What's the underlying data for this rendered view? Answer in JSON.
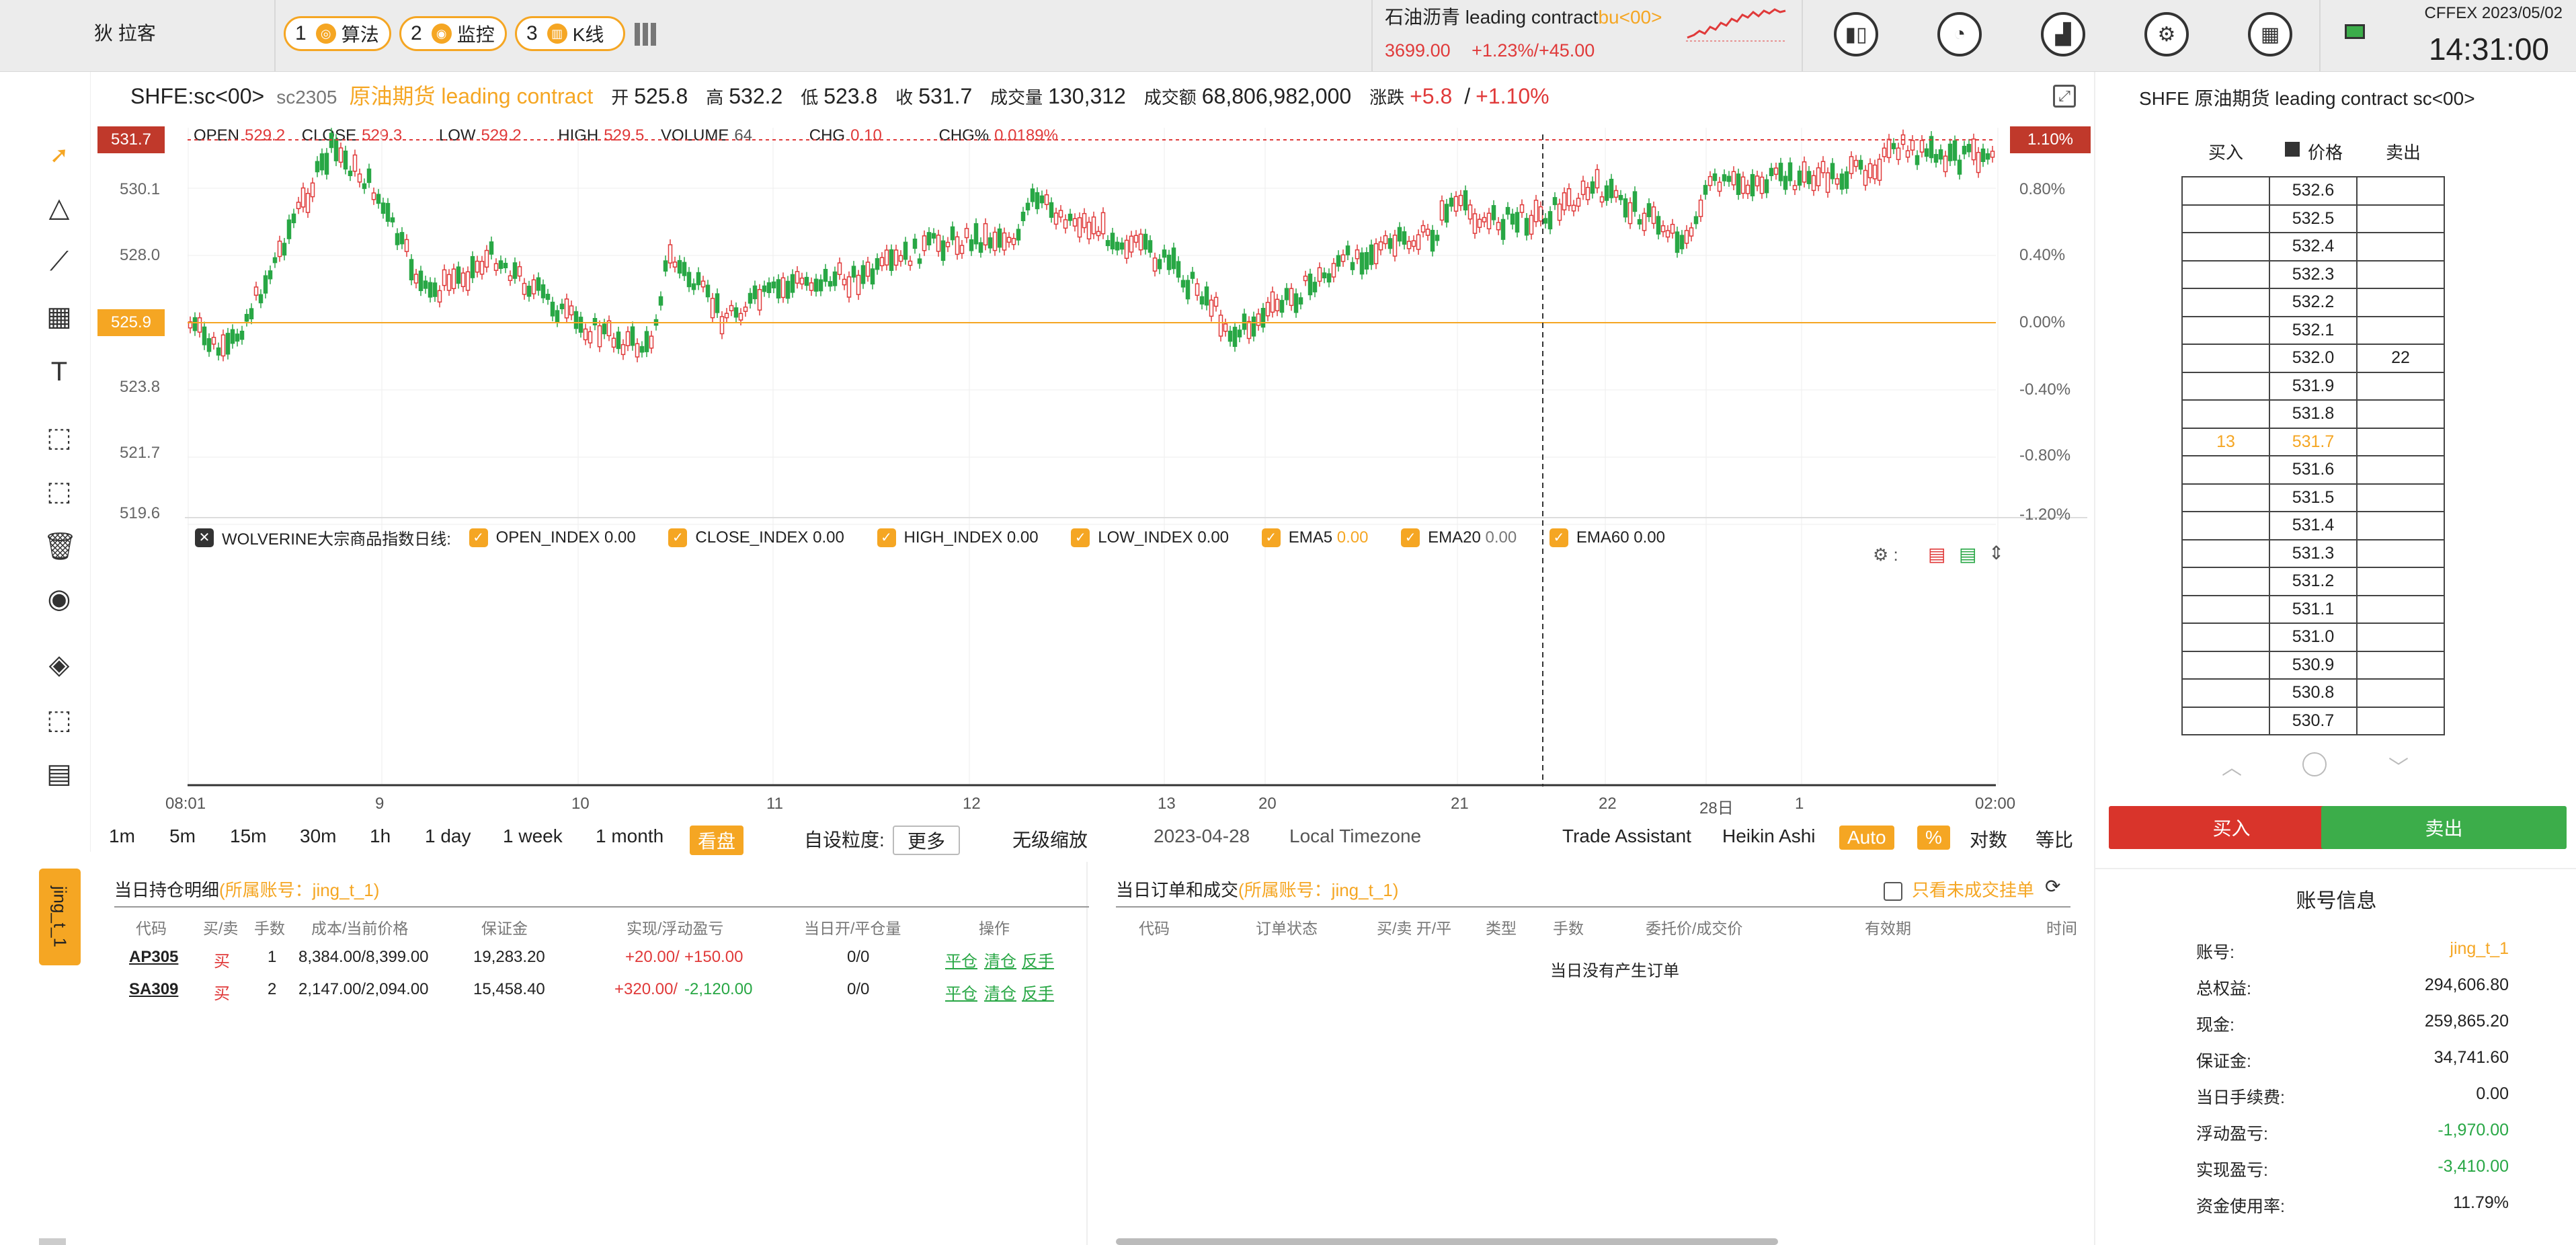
{
  "topbar": {
    "user": "狄 拉客",
    "buttons": [
      {
        "num": "1",
        "icon": "algo-icon",
        "label": "算法"
      },
      {
        "num": "2",
        "icon": "monitor-icon",
        "label": "监控"
      },
      {
        "num": "3",
        "icon": "kline-icon",
        "label": "K线"
      }
    ],
    "ticker_name": "石油沥青 leading contract",
    "ticker_code": "bu<00>",
    "ticker_price": "3699.00",
    "ticker_change": "+1.23%/+45.00",
    "icons": [
      "candlestick-icon",
      "dashboard-icon",
      "bar-chart-icon",
      "gear-icon",
      "calculator-icon",
      "monitor-icon"
    ],
    "exchange_date": "CFFEX 2023/05/02",
    "clock": "14:31:00"
  },
  "chart_header": {
    "symbol": "SHFE:sc<00>",
    "code": "sc2305",
    "name": "原油期货 leading contract",
    "open_label": "开",
    "open": "525.8",
    "high_label": "高",
    "high": "532.2",
    "low_label": "低",
    "low": "523.8",
    "close_label": "收",
    "close": "531.7",
    "vol_label": "成交量",
    "vol": "130,312",
    "amt_label": "成交额",
    "amt": "68,806,982,000",
    "chg_label": "涨跌",
    "chg": "+5.8",
    "chg_pct": "+1.10%"
  },
  "ohlc_legend": {
    "open_label": "OPEN",
    "open": "529.2",
    "close_label": "CLOSE",
    "close": "529.3",
    "low_label": "LOW",
    "low": "529.2",
    "high_label": "HIGH",
    "high": "529.5",
    "volume_label": "VOLUME",
    "volume": "64",
    "chg_label": "CHG",
    "chg": "0.10",
    "chgp_label": "CHG%",
    "chgp": "0.0189%"
  },
  "price_axis": {
    "ticks": [
      "530.1",
      "528.0",
      "525.9",
      "523.8",
      "521.7",
      "519.6"
    ],
    "current_price": "531.7",
    "ref_price": "525.9",
    "pct_ticks": [
      "0.80%",
      "0.40%",
      "0.00%",
      "-0.40%",
      "-0.80%",
      "-1.20%"
    ],
    "current_pct": "1.10%"
  },
  "time_axis": [
    "08:01",
    "9",
    "10",
    "11",
    "12",
    "13",
    "20",
    "21",
    "22",
    "28日",
    "1",
    "02:00"
  ],
  "indicator": {
    "name": "WOLVERINE大宗商品指数日线:",
    "items": [
      {
        "label": "OPEN_INDEX",
        "value": "0.00"
      },
      {
        "label": "CLOSE_INDEX",
        "value": "0.00"
      },
      {
        "label": "HIGH_INDEX",
        "value": "0.00"
      },
      {
        "label": "LOW_INDEX",
        "value": "0.00"
      },
      {
        "label": "EMA5",
        "value": "0.00"
      },
      {
        "label": "EMA20",
        "value": "0.00"
      },
      {
        "label": "EMA60",
        "value": "0.00"
      }
    ]
  },
  "timebar": {
    "intervals": [
      "1m",
      "5m",
      "15m",
      "30m",
      "1h",
      "1 day",
      "1 week",
      "1 month"
    ],
    "pan": "看盘",
    "custom_label": "自设粒度:",
    "custom_value": "更多",
    "no_zoom": "无级缩放",
    "date": "2023-04-28",
    "tz": "Local Timezone",
    "assistant": "Trade Assistant",
    "heikin": "Heikin Ashi",
    "auto": "Auto",
    "pct": "%",
    "log": "对数",
    "equal": "等比"
  },
  "account_tab": "jing_t_1",
  "positions": {
    "title": "当日持仓明细",
    "account": "(所属账号：jing_t_1)",
    "headers": [
      "代码",
      "买/卖",
      "手数",
      "成本/当前价格",
      "保证金",
      "实现/浮动盈亏",
      "当日开/平仓量",
      "操作"
    ],
    "rows": [
      {
        "code": "AP305",
        "side": "买",
        "qty": "1",
        "price": "8,384.00/8,399.00",
        "margin": "19,283.20",
        "pnl_r": "+20.00/",
        "pnl_f": "+150.00",
        "oc": "0/0"
      },
      {
        "code": "SA309",
        "side": "买",
        "qty": "2",
        "price": "2,147.00/2,094.00",
        "margin": "15,458.40",
        "pnl_r": "+320.00/",
        "pnl_f": "-2,120.00",
        "oc": "0/0"
      }
    ],
    "ops": [
      "平仓",
      "清仓",
      "反手"
    ]
  },
  "orders": {
    "title": "当日订单和成交",
    "account": "(所属账号：jing_t_1)",
    "unfilled_only": "只看未成交挂单",
    "headers": [
      "代码",
      "订单状态",
      "买/卖 开/平",
      "类型",
      "手数",
      "委托价/成交价",
      "有效期",
      "时间"
    ],
    "empty": "当日没有产生订单"
  },
  "orderbook": {
    "title": "SHFE 原油期货 leading contract sc<00>",
    "buy_col": "买入",
    "price_col": "价格",
    "sell_col": "卖出",
    "levels": [
      {
        "buy": "",
        "price": "532.6",
        "sell": ""
      },
      {
        "buy": "",
        "price": "532.5",
        "sell": ""
      },
      {
        "buy": "",
        "price": "532.4",
        "sell": ""
      },
      {
        "buy": "",
        "price": "532.3",
        "sell": ""
      },
      {
        "buy": "",
        "price": "532.2",
        "sell": ""
      },
      {
        "buy": "",
        "price": "532.1",
        "sell": ""
      },
      {
        "buy": "",
        "price": "532.0",
        "sell": "22"
      },
      {
        "buy": "",
        "price": "531.9",
        "sell": ""
      },
      {
        "buy": "",
        "price": "531.8",
        "sell": ""
      },
      {
        "buy": "13",
        "price": "531.7",
        "sell": ""
      },
      {
        "buy": "",
        "price": "531.6",
        "sell": ""
      },
      {
        "buy": "",
        "price": "531.5",
        "sell": ""
      },
      {
        "buy": "",
        "price": "531.4",
        "sell": ""
      },
      {
        "buy": "",
        "price": "531.3",
        "sell": ""
      },
      {
        "buy": "",
        "price": "531.2",
        "sell": ""
      },
      {
        "buy": "",
        "price": "531.1",
        "sell": ""
      },
      {
        "buy": "",
        "price": "531.0",
        "sell": ""
      },
      {
        "buy": "",
        "price": "530.9",
        "sell": ""
      },
      {
        "buy": "",
        "price": "530.8",
        "sell": ""
      },
      {
        "buy": "",
        "price": "530.7",
        "sell": ""
      }
    ],
    "buy_button": "买入",
    "sell_button": "卖出"
  },
  "account_info": {
    "title": "账号信息",
    "rows": [
      {
        "label": "账号:",
        "value": "jing_t_1",
        "color": "#f5a623"
      },
      {
        "label": "总权益:",
        "value": "294,606.80",
        "color": "#222222"
      },
      {
        "label": "现金:",
        "value": "259,865.20",
        "color": "#222222"
      },
      {
        "label": "保证金:",
        "value": "34,741.60",
        "color": "#222222"
      },
      {
        "label": "当日手续费:",
        "value": "0.00",
        "color": "#222222"
      },
      {
        "label": "浮动盈亏:",
        "value": "-1,970.00",
        "color": "#28a745"
      },
      {
        "label": "实现盈亏:",
        "value": "-3,410.00",
        "color": "#28a745"
      },
      {
        "label": "资金使用率:",
        "value": "11.79%",
        "color": "#222222"
      }
    ]
  },
  "colors": {
    "accent": "#f5a623",
    "up": "#e03a3a",
    "down": "#28a745"
  }
}
